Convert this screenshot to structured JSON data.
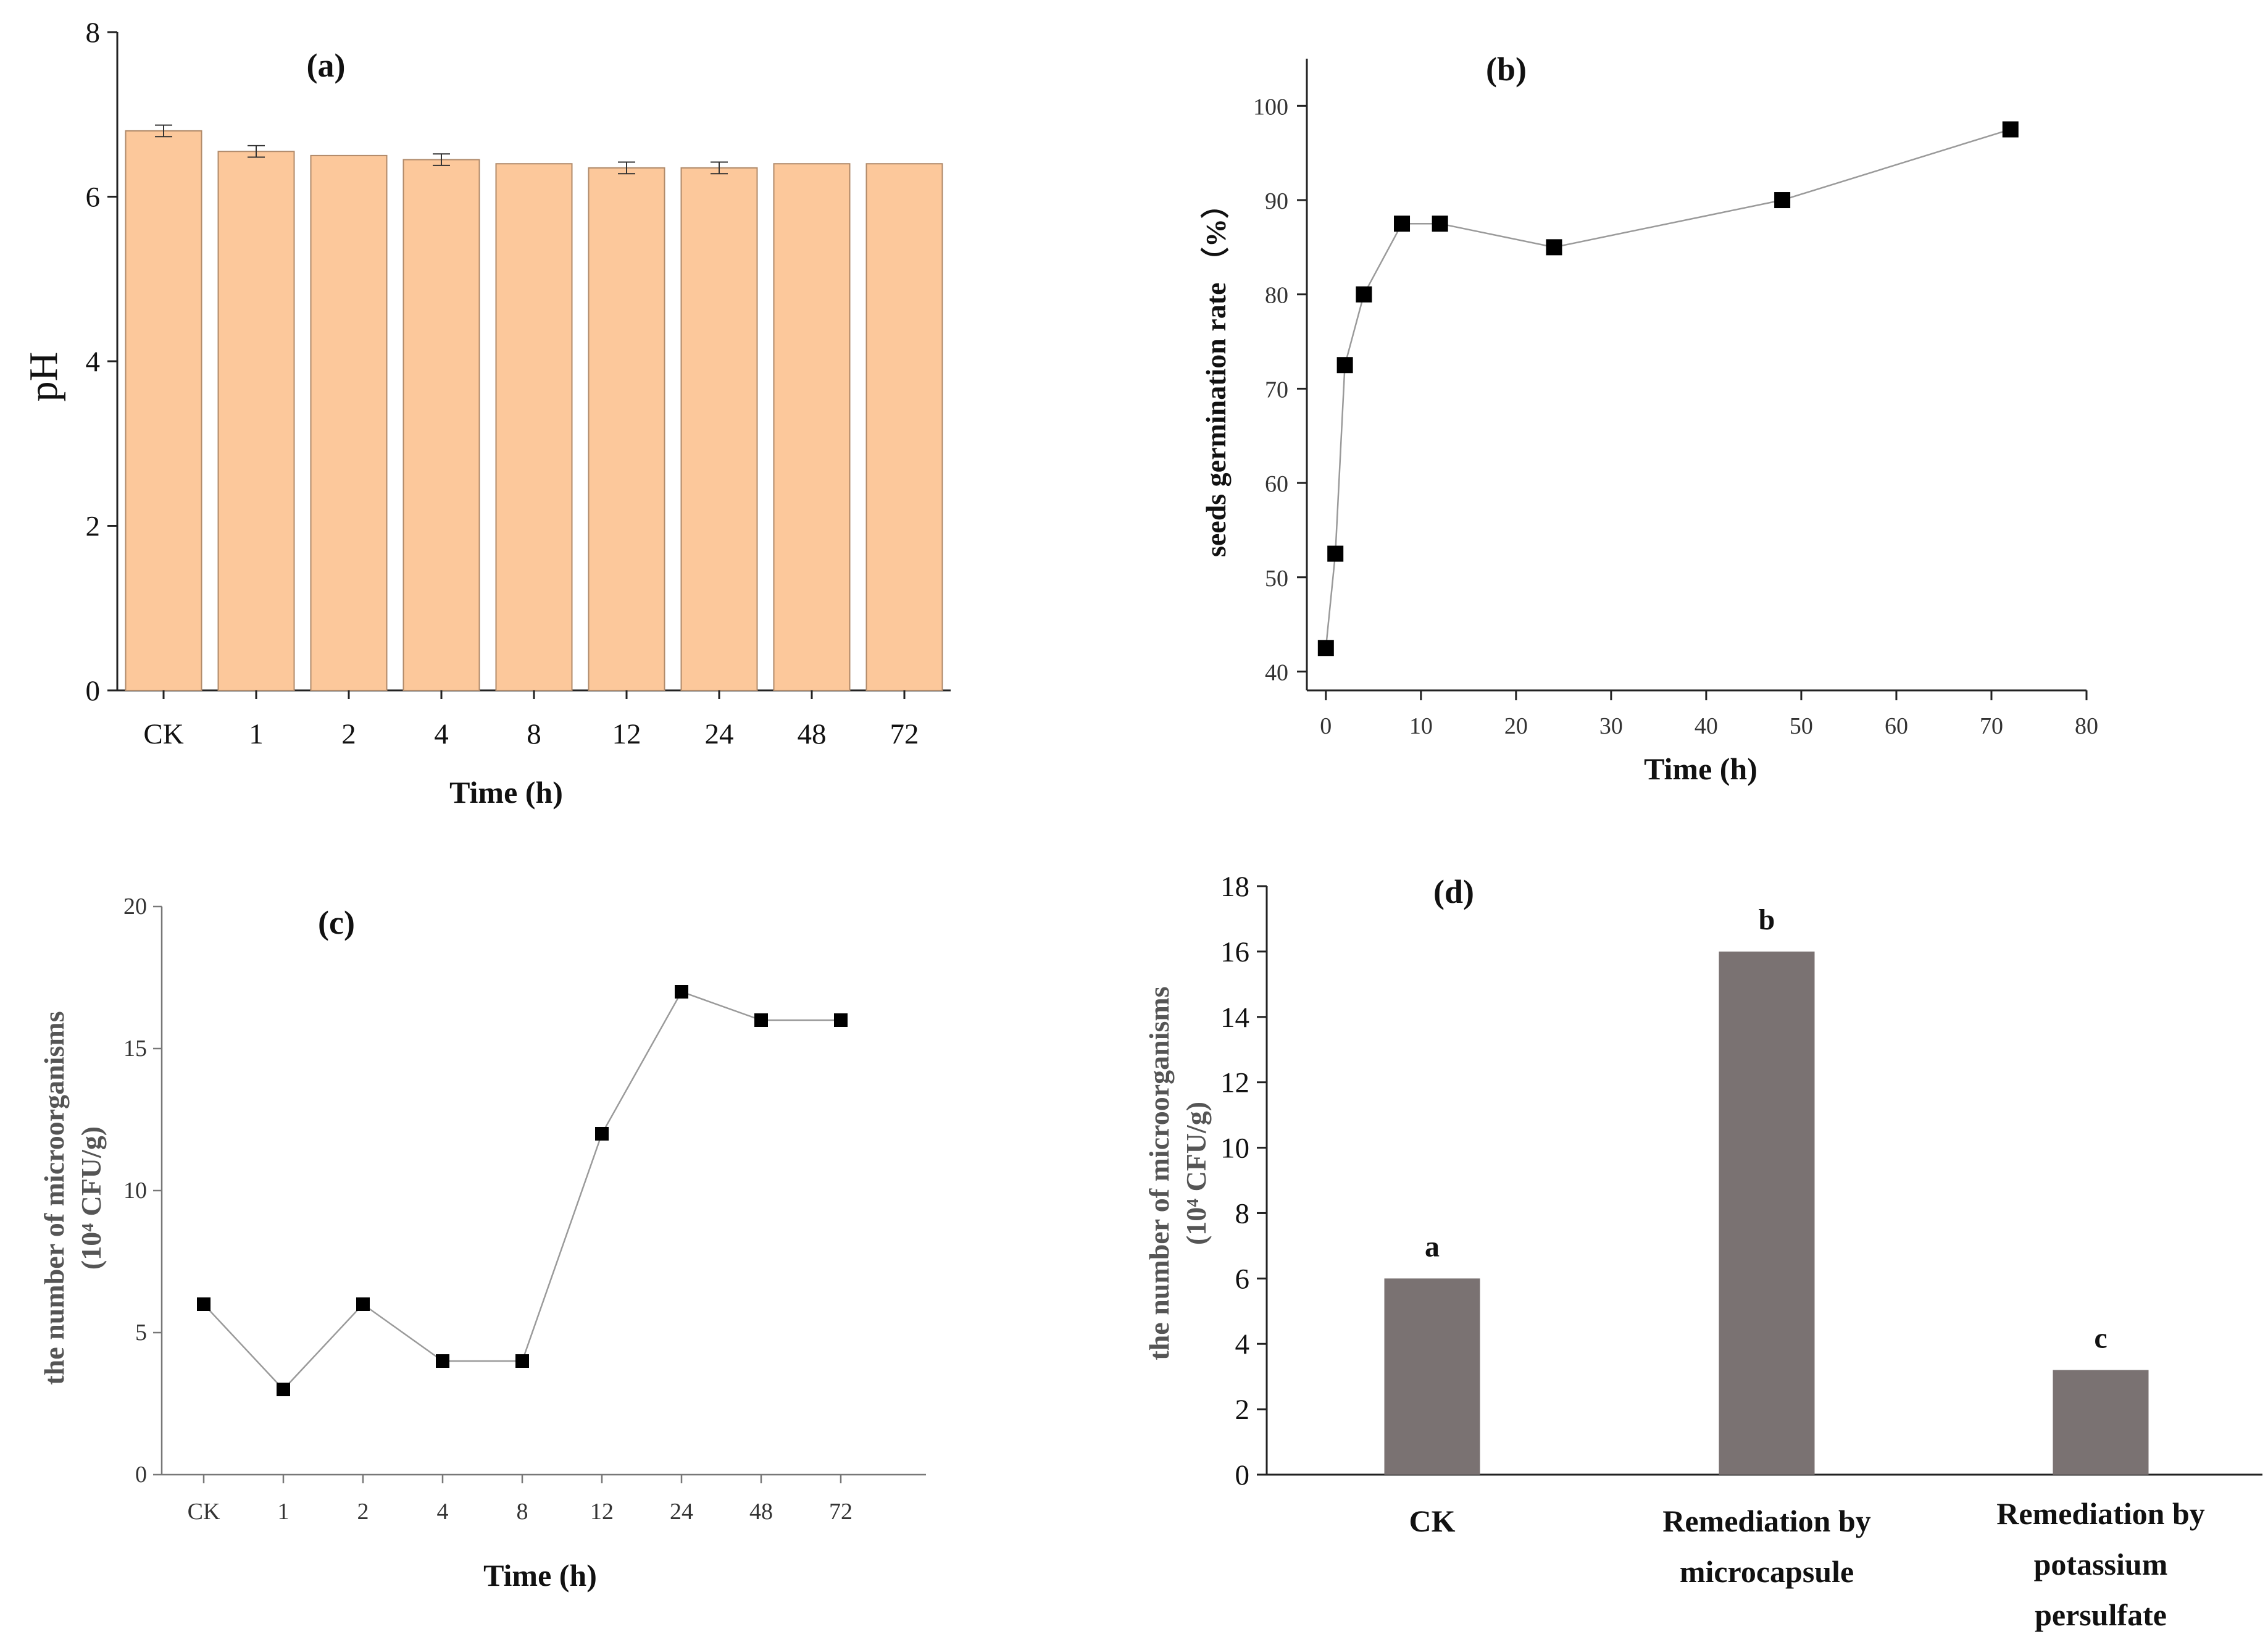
{
  "chart_data": [
    {
      "panel": "a",
      "type": "bar",
      "title": "(a)",
      "xlabel": "Time (h)",
      "ylabel": "pH",
      "categories": [
        "CK",
        "1",
        "2",
        "4",
        "8",
        "12",
        "24",
        "48",
        "72"
      ],
      "values": [
        6.8,
        6.55,
        6.5,
        6.45,
        6.4,
        6.35,
        6.35,
        6.4,
        6.4
      ],
      "errors": [
        0.07,
        0.07,
        0,
        0.07,
        0,
        0.07,
        0.07,
        0,
        0
      ],
      "ylim": [
        0,
        8
      ],
      "yticks": [
        "0",
        "2",
        "4",
        "6",
        "8"
      ],
      "bar_color": "#fcc89b",
      "edge_color": "#b08a6a"
    },
    {
      "panel": "b",
      "type": "line",
      "title": "(b)",
      "xlabel": "Time (h)",
      "ylabel": "seeds germination rate （%）",
      "x": [
        0,
        1,
        2,
        4,
        8,
        12,
        24,
        48,
        72
      ],
      "y": [
        42.5,
        52.5,
        72.5,
        80,
        87.5,
        87.5,
        85,
        90,
        97.5
      ],
      "xlim": [
        -2,
        80
      ],
      "ylim": [
        38,
        105
      ],
      "xticks": [
        "0",
        "10",
        "20",
        "30",
        "40",
        "50",
        "60",
        "70",
        "80"
      ],
      "yticks": [
        "40",
        "50",
        "60",
        "70",
        "80",
        "90",
        "100"
      ],
      "marker": "square",
      "line_color": "#9a9a9a"
    },
    {
      "panel": "c",
      "type": "line",
      "title": "(c)",
      "xlabel": "Time (h)",
      "ylabel_line1": "the number of microorganisms",
      "ylabel_line2": "(10⁴ CFU/g)",
      "categories": [
        "CK",
        "1",
        "2",
        "4",
        "8",
        "12",
        "24",
        "48",
        "72"
      ],
      "values": [
        6,
        3,
        6,
        4,
        4,
        12,
        17,
        16,
        16
      ],
      "ylim": [
        0,
        20
      ],
      "yticks": [
        "0",
        "5",
        "10",
        "15",
        "20"
      ],
      "marker": "square",
      "line_color": "#9a9a9a"
    },
    {
      "panel": "d",
      "type": "bar",
      "title": "(d)",
      "ylabel_line1": "the number of microorganisms",
      "ylabel_line2": "(10⁴ CFU/g)",
      "categories": [
        [
          "CK"
        ],
        [
          "Remediation by",
          "microcapsule"
        ],
        [
          "Remediation by",
          "potassium",
          "persulfate"
        ]
      ],
      "values": [
        6,
        16,
        3.2
      ],
      "significance": [
        "a",
        "b",
        "c"
      ],
      "ylim": [
        0,
        18
      ],
      "yticks": [
        "0",
        "2",
        "4",
        "6",
        "8",
        "10",
        "12",
        "14",
        "16",
        "18"
      ],
      "bar_color": "#7a7272"
    }
  ]
}
